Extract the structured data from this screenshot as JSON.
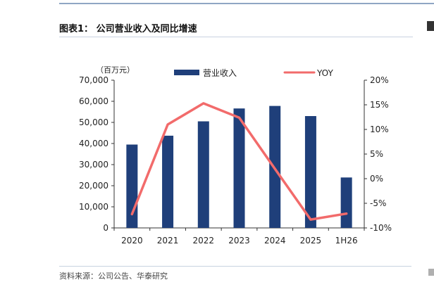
{
  "figure": {
    "title": "图表1： 公司营业收入及同比增速",
    "source": "资料来源：公司公告、华泰研究"
  },
  "chart_data": {
    "type": "bar",
    "categories": [
      "2020",
      "2021",
      "2022",
      "2023",
      "2024",
      "2025",
      "1H26"
    ],
    "y_unit": "（百万元）",
    "series": [
      {
        "name": "营业收入",
        "type": "bar",
        "axis": "left",
        "values": [
          39500,
          43700,
          50500,
          56600,
          57800,
          53000,
          23900
        ]
      },
      {
        "name": "YOY",
        "type": "line",
        "axis": "right",
        "values": [
          -7.2,
          11.0,
          15.3,
          12.4,
          2.0,
          -8.3,
          -7.1
        ]
      }
    ],
    "ylim_left": [
      0,
      70000
    ],
    "yticks_left": [
      "0",
      "10,000",
      "20,000",
      "30,000",
      "40,000",
      "50,000",
      "60,000",
      "70,000"
    ],
    "ylim_right": [
      -10,
      20
    ],
    "yticks_right": [
      "-10%",
      "-5%",
      "0%",
      "5%",
      "10%",
      "15%",
      "20%"
    ],
    "legend": "top",
    "grid": false,
    "colors": {
      "bar": "#1f3f7a",
      "line": "#f26b6b"
    }
  }
}
